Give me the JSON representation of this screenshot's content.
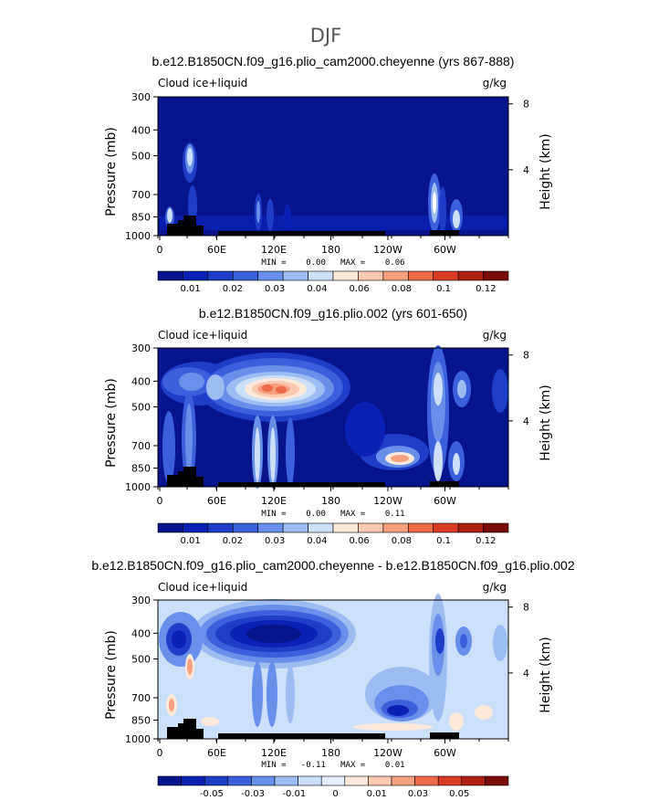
{
  "page_title": "DJF",
  "colors": {
    "base_panel": "#08148c",
    "land_mask": "#000000",
    "scale_positive": [
      "#08148c",
      "#0a22b4",
      "#1e3ec8",
      "#3a60dc",
      "#6890ea",
      "#9dbcf2",
      "#cde0fa",
      "#fde8dc",
      "#fbc8b0",
      "#f5a07e",
      "#ee6a48",
      "#d83a24",
      "#b02012",
      "#7a0a08"
    ],
    "scale_diff": [
      "#08148c",
      "#0a22b4",
      "#1e3ec8",
      "#3a60dc",
      "#6890ea",
      "#9dbcf2",
      "#cde0fa",
      "#e4eefc",
      "#fde8dc",
      "#fbc8b0",
      "#f5a07e",
      "#ee6a48",
      "#d83a24",
      "#b02012",
      "#7a0a08"
    ]
  },
  "chart_data": [
    {
      "type": "heatmap",
      "title": "b.e12.B1850CN.f09_g16.plio_cam2000.cheyenne (yrs 867-888)",
      "field_label": "Cloud ice+liquid",
      "units": "g/kg",
      "ylabel": "Pressure (mb)",
      "y2label": "Height (km)",
      "x_ticks": [
        "0",
        "60E",
        "120E",
        "180",
        "120W",
        "60W"
      ],
      "y_ticks": [
        "300",
        "400",
        "500",
        "700",
        "850",
        "1000"
      ],
      "y2_ticks": [
        "8",
        "4"
      ],
      "stats_text": "MIN =    0.00   MAX =    0.06",
      "min": 0.0,
      "max": 0.06,
      "colorbar_labels": [
        "0.01",
        "0.02",
        "0.03",
        "0.04",
        "0.06",
        "0.08",
        "0.1",
        "0.12"
      ]
    },
    {
      "type": "heatmap",
      "title": "b.e12.B1850CN.f09_g16.plio.002 (yrs 601-650)",
      "field_label": "Cloud ice+liquid",
      "units": "g/kg",
      "ylabel": "Pressure (mb)",
      "y2label": "Height (km)",
      "x_ticks": [
        "0",
        "60E",
        "120E",
        "180",
        "120W",
        "60W"
      ],
      "y_ticks": [
        "300",
        "400",
        "500",
        "700",
        "850",
        "1000"
      ],
      "y2_ticks": [
        "8",
        "4"
      ],
      "stats_text": "MIN =    0.00   MAX =    0.11",
      "min": 0.0,
      "max": 0.11,
      "colorbar_labels": [
        "0.01",
        "0.02",
        "0.03",
        "0.04",
        "0.06",
        "0.08",
        "0.1",
        "0.12"
      ]
    },
    {
      "type": "heatmap",
      "title": "b.e12.B1850CN.f09_g16.plio_cam2000.cheyenne - b.e12.B1850CN.f09_g16.plio.002",
      "field_label": "Cloud ice+liquid",
      "units": "g/kg",
      "ylabel": "Pressure (mb)",
      "y2label": "Height (km)",
      "x_ticks": [
        "0",
        "60E",
        "120E",
        "180",
        "120W",
        "60W"
      ],
      "y_ticks": [
        "300",
        "400",
        "500",
        "700",
        "850",
        "1000"
      ],
      "y2_ticks": [
        "8",
        "4"
      ],
      "stats_text": "MIN =   -0.11   MAX =    0.01",
      "min": -0.11,
      "max": 0.01,
      "colorbar_labels": [
        "-0.05",
        "-0.03",
        "-0.01",
        "0",
        "0.01",
        "0.03",
        "0.05"
      ]
    }
  ]
}
